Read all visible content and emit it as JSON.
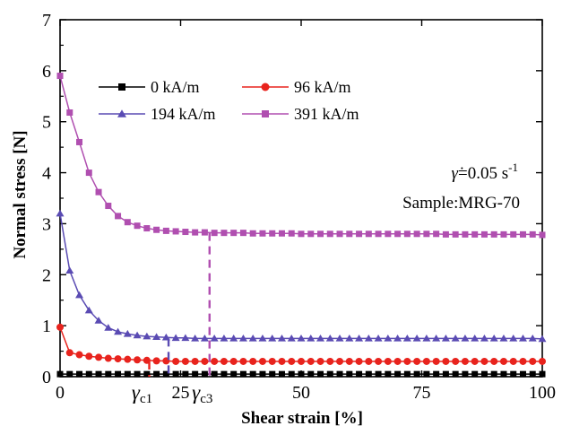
{
  "chart_data": {
    "type": "line",
    "xlabel": "Shear strain [%]",
    "ylabel": "Normal stress [N]",
    "xlim": [
      0,
      100
    ],
    "ylim": [
      0,
      7
    ],
    "x_ticks": [
      0,
      25,
      50,
      75,
      100
    ],
    "y_ticks": [
      0,
      1,
      2,
      3,
      4,
      5,
      6,
      7
    ],
    "grid": false,
    "legend_position": "top-left",
    "series": [
      {
        "name": "0 kA/m",
        "color": "#000000",
        "marker": "square",
        "x": [
          0,
          2,
          4,
          6,
          8,
          10,
          12,
          14,
          16,
          18,
          20,
          22,
          24,
          26,
          28,
          30,
          32,
          34,
          36,
          38,
          40,
          42,
          44,
          46,
          48,
          50,
          52,
          54,
          56,
          58,
          60,
          62,
          64,
          66,
          68,
          70,
          72,
          74,
          76,
          78,
          80,
          82,
          84,
          86,
          88,
          90,
          92,
          94,
          96,
          98,
          100
        ],
        "y": [
          0.05,
          0.05,
          0.05,
          0.05,
          0.05,
          0.05,
          0.05,
          0.05,
          0.05,
          0.05,
          0.05,
          0.05,
          0.05,
          0.05,
          0.05,
          0.05,
          0.05,
          0.05,
          0.05,
          0.05,
          0.05,
          0.05,
          0.05,
          0.05,
          0.05,
          0.05,
          0.05,
          0.05,
          0.05,
          0.05,
          0.05,
          0.05,
          0.05,
          0.05,
          0.05,
          0.05,
          0.05,
          0.05,
          0.05,
          0.05,
          0.05,
          0.05,
          0.05,
          0.05,
          0.05,
          0.05,
          0.05,
          0.05,
          0.05,
          0.05,
          0.05
        ]
      },
      {
        "name": "96 kA/m",
        "color": "#e8231d",
        "marker": "circle",
        "x": [
          0,
          2,
          4,
          6,
          8,
          10,
          12,
          14,
          16,
          18,
          20,
          22,
          24,
          26,
          28,
          30,
          32,
          34,
          36,
          38,
          40,
          42,
          44,
          46,
          48,
          50,
          52,
          54,
          56,
          58,
          60,
          62,
          64,
          66,
          68,
          70,
          72,
          74,
          76,
          78,
          80,
          82,
          84,
          86,
          88,
          90,
          92,
          94,
          96,
          98,
          100
        ],
        "y": [
          0.97,
          0.47,
          0.43,
          0.4,
          0.38,
          0.36,
          0.35,
          0.34,
          0.33,
          0.32,
          0.31,
          0.31,
          0.3,
          0.3,
          0.3,
          0.3,
          0.3,
          0.3,
          0.3,
          0.3,
          0.3,
          0.3,
          0.3,
          0.3,
          0.3,
          0.3,
          0.3,
          0.3,
          0.3,
          0.3,
          0.3,
          0.3,
          0.3,
          0.3,
          0.3,
          0.3,
          0.3,
          0.3,
          0.3,
          0.3,
          0.3,
          0.3,
          0.3,
          0.3,
          0.3,
          0.3,
          0.3,
          0.3,
          0.3,
          0.3,
          0.3
        ]
      },
      {
        "name": "194 kA/m",
        "color": "#5a4bb3",
        "marker": "triangle",
        "x": [
          0,
          2,
          4,
          6,
          8,
          10,
          12,
          14,
          16,
          18,
          20,
          22,
          24,
          26,
          28,
          30,
          32,
          34,
          36,
          38,
          40,
          42,
          44,
          46,
          48,
          50,
          52,
          54,
          56,
          58,
          60,
          62,
          64,
          66,
          68,
          70,
          72,
          74,
          76,
          78,
          80,
          82,
          84,
          86,
          88,
          90,
          92,
          94,
          96,
          98,
          100
        ],
        "y": [
          3.2,
          2.08,
          1.6,
          1.3,
          1.1,
          0.96,
          0.88,
          0.84,
          0.81,
          0.79,
          0.78,
          0.77,
          0.76,
          0.76,
          0.75,
          0.75,
          0.75,
          0.75,
          0.75,
          0.75,
          0.75,
          0.75,
          0.75,
          0.75,
          0.75,
          0.75,
          0.75,
          0.75,
          0.75,
          0.75,
          0.75,
          0.75,
          0.75,
          0.75,
          0.75,
          0.75,
          0.75,
          0.75,
          0.75,
          0.75,
          0.75,
          0.75,
          0.75,
          0.75,
          0.75,
          0.75,
          0.75,
          0.75,
          0.75,
          0.75,
          0.74
        ]
      },
      {
        "name": "391 kA/m",
        "color": "#b04fb0",
        "marker": "square",
        "x": [
          0,
          2,
          4,
          6,
          8,
          10,
          12,
          14,
          16,
          18,
          20,
          22,
          24,
          26,
          28,
          30,
          32,
          34,
          36,
          38,
          40,
          42,
          44,
          46,
          48,
          50,
          52,
          54,
          56,
          58,
          60,
          62,
          64,
          66,
          68,
          70,
          72,
          74,
          76,
          78,
          80,
          82,
          84,
          86,
          88,
          90,
          92,
          94,
          96,
          98,
          100
        ],
        "y": [
          5.9,
          5.18,
          4.6,
          4.0,
          3.62,
          3.35,
          3.15,
          3.03,
          2.96,
          2.91,
          2.88,
          2.86,
          2.85,
          2.84,
          2.83,
          2.83,
          2.82,
          2.82,
          2.82,
          2.82,
          2.81,
          2.81,
          2.81,
          2.81,
          2.81,
          2.8,
          2.8,
          2.8,
          2.8,
          2.8,
          2.8,
          2.8,
          2.8,
          2.8,
          2.8,
          2.8,
          2.8,
          2.8,
          2.8,
          2.8,
          2.79,
          2.79,
          2.79,
          2.79,
          2.79,
          2.79,
          2.79,
          2.79,
          2.79,
          2.79,
          2.78
        ]
      }
    ],
    "annotations": {
      "rate_text": "=0.05 s",
      "rate_symbol": "γ̇",
      "rate_superscript": "-1",
      "sample_text": "Sample:MRG-70",
      "critical_lines": [
        {
          "label_main": "γ",
          "label_sub": "c1",
          "x": 18.5,
          "y_top": 0.3,
          "color": "#e8231d"
        },
        {
          "label_main": "",
          "label_sub": "",
          "x": 22.5,
          "y_top": 0.75,
          "color": "#5a4bb3"
        },
        {
          "label_main": "γ",
          "label_sub": "c3",
          "x": 31,
          "y_top": 2.82,
          "color": "#b04fb0"
        }
      ]
    }
  }
}
